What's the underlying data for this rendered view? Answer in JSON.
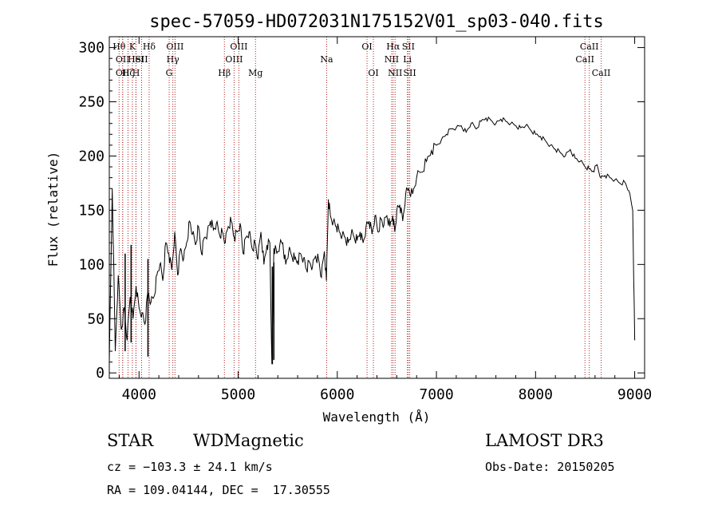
{
  "chart_data": {
    "type": "line",
    "title": "spec-57059-HD072031N175152V01_sp03-040.fits",
    "xlabel": "Wavelength (Å)",
    "ylabel": "Flux (relative)",
    "xlim": [
      3700,
      9100
    ],
    "ylim": [
      -5,
      310
    ],
    "xticks": [
      4000,
      5000,
      6000,
      7000,
      8000,
      9000
    ],
    "yticks": [
      0,
      50,
      100,
      150,
      200,
      250,
      300
    ],
    "grid": false,
    "line_color": "#000000",
    "marker_color": "#b22222",
    "series": [
      {
        "x": [
          3700,
          3730,
          3760,
          3790,
          3820,
          3850,
          3880,
          3910,
          3940,
          3970,
          4000,
          4030,
          4060,
          4090,
          4120,
          4150,
          4180,
          4210,
          4240,
          4270,
          4300,
          4330,
          4360,
          4390,
          4420,
          4450,
          4480,
          4510,
          4540,
          4570,
          4600,
          4630,
          4660,
          4690,
          4720,
          4750,
          4780,
          4810,
          4840,
          4870,
          4900,
          4930,
          4960,
          4990,
          5020,
          5050,
          5080,
          5110,
          5140,
          5170,
          5200,
          5230,
          5260,
          5290,
          5320,
          5340,
          5360,
          5390,
          5420,
          5450,
          5480,
          5510,
          5540,
          5570,
          5600,
          5630,
          5660,
          5690,
          5720,
          5750,
          5780,
          5810,
          5840,
          5870,
          5890,
          5910,
          5930,
          5960,
          5990,
          6020,
          6050,
          6080,
          6110,
          6140,
          6170,
          6200,
          6230,
          6260,
          6290,
          6320,
          6350,
          6380,
          6410,
          6440,
          6470,
          6500,
          6530,
          6560,
          6580,
          6600,
          6630,
          6660,
          6690,
          6720,
          6760,
          6800,
          6850,
          6900,
          6950,
          7000,
          7050,
          7100,
          7150,
          7200,
          7250,
          7300,
          7350,
          7400,
          7450,
          7500,
          7550,
          7600,
          7650,
          7700,
          7750,
          7800,
          7850,
          7900,
          7950,
          8000,
          8050,
          8100,
          8150,
          8200,
          8250,
          8300,
          8350,
          8400,
          8450,
          8500,
          8540,
          8580,
          8620,
          8660,
          8700,
          8750,
          8800,
          8850,
          8900,
          8940,
          8980,
          9000
        ],
        "y": [
          10,
          170,
          20,
          90,
          40,
          60,
          30,
          70,
          50,
          80,
          60,
          55,
          45,
          75,
          65,
          70,
          90,
          100,
          85,
          120,
          110,
          95,
          130,
          90,
          115,
          105,
          120,
          140,
          128,
          118,
          135,
          110,
          125,
          130,
          140,
          132,
          138,
          128,
          130,
          120,
          135,
          140,
          125,
          130,
          138,
          110,
          125,
          130,
          115,
          120,
          105,
          130,
          100,
          118,
          120,
          8,
          115,
          110,
          118,
          120,
          100,
          112,
          108,
          105,
          103,
          110,
          106,
          95,
          102,
          98,
          108,
          105,
          88,
          112,
          85,
          160,
          145,
          140,
          135,
          130,
          127,
          125,
          120,
          128,
          125,
          122,
          130,
          120,
          135,
          140,
          128,
          145,
          130,
          142,
          136,
          145,
          135,
          145,
          130,
          150,
          155,
          140,
          165,
          170,
          165,
          180,
          185,
          195,
          205,
          210,
          215,
          220,
          225,
          226,
          228,
          222,
          230,
          225,
          232,
          235,
          233,
          230,
          234,
          232,
          230,
          228,
          226,
          228,
          224,
          220,
          218,
          214,
          210,
          206,
          203,
          200,
          206,
          198,
          195,
          190,
          188,
          186,
          192,
          180,
          182,
          180,
          178,
          175,
          176,
          168,
          150,
          30
        ],
        "valley_points": [
          {
            "x": 5345,
            "y": 8
          },
          {
            "x": 5360,
            "y": 12
          },
          {
            "x": 4090,
            "y": 15
          },
          {
            "x": 3860,
            "y": 20
          },
          {
            "x": 3920,
            "y": 28
          }
        ]
      }
    ],
    "line_markers": [
      {
        "x": 3799,
        "label": "Hθ",
        "row": 1
      },
      {
        "x": 3835,
        "label": "OII",
        "row": 2
      },
      {
        "x": 3835,
        "label": "OII",
        "row": 3
      },
      {
        "x": 3889,
        "label": "Hζ",
        "row": 3
      },
      {
        "x": 3933,
        "label": "K",
        "row": 1
      },
      {
        "x": 3968,
        "label": "HeI",
        "row": 2
      },
      {
        "x": 3970,
        "label": "H",
        "row": 3
      },
      {
        "x": 4026,
        "label": "SII",
        "row": 2
      },
      {
        "x": 4102,
        "label": "Hδ",
        "row": 1
      },
      {
        "x": 4304,
        "label": "G",
        "row": 3
      },
      {
        "x": 4341,
        "label": "Hγ",
        "row": 2
      },
      {
        "x": 4363,
        "label": "OIII",
        "row": 1
      },
      {
        "x": 4861,
        "label": "Hβ",
        "row": 3
      },
      {
        "x": 4959,
        "label": "OIII",
        "row": 2
      },
      {
        "x": 5007,
        "label": "OIII",
        "row": 1
      },
      {
        "x": 5175,
        "label": "Mg",
        "row": 3
      },
      {
        "x": 5893,
        "label": "Na",
        "row": 2
      },
      {
        "x": 6300,
        "label": "OI",
        "row": 1
      },
      {
        "x": 6364,
        "label": "OI",
        "row": 3
      },
      {
        "x": 6548,
        "label": "NII",
        "row": 2
      },
      {
        "x": 6563,
        "label": "Hα",
        "row": 1
      },
      {
        "x": 6583,
        "label": "NII",
        "row": 3
      },
      {
        "x": 6707,
        "label": "Li",
        "row": 2
      },
      {
        "x": 6717,
        "label": "SII",
        "row": 1
      },
      {
        "x": 6731,
        "label": "SII",
        "row": 3
      },
      {
        "x": 8498,
        "label": "CaII",
        "row": 2
      },
      {
        "x": 8542,
        "label": "CaII",
        "row": 1
      },
      {
        "x": 8662,
        "label": "CaII",
        "row": 3
      }
    ]
  },
  "info": {
    "object_class": "STAR",
    "subclass": "WDMagnetic",
    "survey": "LAMOST DR3",
    "cz": "cz = −103.3 ± 24.1 km/s",
    "obs_date": "Obs-Date: 20150205",
    "coords": "RA = 109.04144, DEC =  17.30555"
  }
}
